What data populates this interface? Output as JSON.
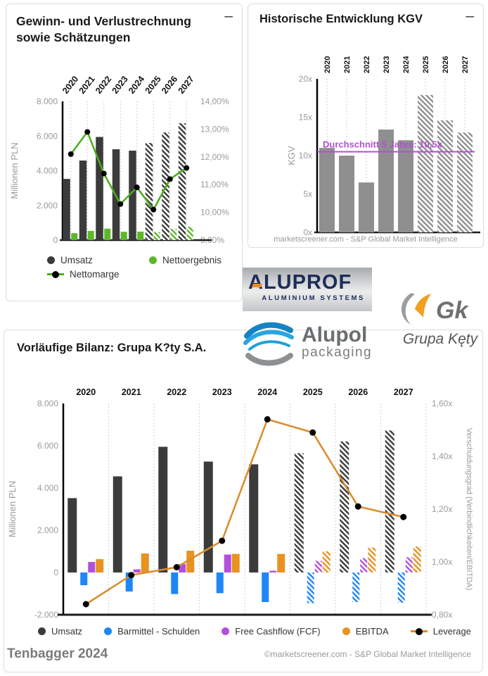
{
  "ui": {
    "collapse_icon": "–",
    "kgv_source": "marketscreener.com - S&P Global Market Intelligence"
  },
  "footer": {
    "left": "Tenbagger 2024",
    "right": "©marketscreener.com - S&P Global Market Intelligence"
  },
  "logos": {
    "aluprof": {
      "name": "ALUPROF",
      "subtitle": "ALUMINIUM SYSTEMS"
    },
    "alupol": {
      "name": "Alupol",
      "subtitle": "packaging"
    },
    "grupakety": {
      "abbr": "Gk",
      "name": "Grupa Kęty"
    }
  },
  "chart_data": [
    {
      "id": "income",
      "type": "bar",
      "title": "Gewinn- und Verlustrechnung sowie Schätzungen",
      "categories": [
        "2020",
        "2021",
        "2022",
        "2023",
        "2024",
        "2025",
        "2026",
        "2027"
      ],
      "estimated_categories": [
        "2025",
        "2026",
        "2027"
      ],
      "ylabel_left": "Millionen PLN",
      "ylim_left": [
        0,
        8000
      ],
      "yticks_left": [
        {
          "v": 8000,
          "label": "8.000"
        },
        {
          "v": 6000,
          "label": "6.000"
        },
        {
          "v": 4000,
          "label": "4.000"
        },
        {
          "v": 2000,
          "label": "2.000"
        },
        {
          "v": 0,
          "label": "0"
        }
      ],
      "ylim_right": [
        9,
        14
      ],
      "yticks_right": [
        {
          "v": 14,
          "label": "14,00%"
        },
        {
          "v": 13,
          "label": "13,00%"
        },
        {
          "v": 12,
          "label": "12,00%"
        },
        {
          "v": 11,
          "label": "11,00%"
        },
        {
          "v": 10,
          "label": "10,00%"
        },
        {
          "v": 9,
          "label": "9,00%"
        }
      ],
      "series": [
        {
          "name": "Umsatz",
          "kind": "bar",
          "axis": "left",
          "color": "#3b3b3b",
          "values": [
            3530,
            4590,
            5950,
            5240,
            5160,
            5600,
            6210,
            6740
          ]
        },
        {
          "name": "Nettoergebnis",
          "kind": "bar",
          "axis": "left",
          "color": "#5cb82a",
          "values": [
            400,
            530,
            660,
            480,
            490,
            460,
            640,
            770
          ]
        },
        {
          "name": "Nettomarge",
          "kind": "line",
          "axis": "right",
          "color": "#4aae1c",
          "marker_color": "#000000",
          "values": [
            12.1,
            12.9,
            11.4,
            10.3,
            10.9,
            10.1,
            11.2,
            11.6
          ]
        }
      ],
      "legend": [
        {
          "label": "Umsatz",
          "marker": "dot",
          "color": "#3b3b3b"
        },
        {
          "label": "Nettoergebnis",
          "marker": "dot",
          "color": "#5cb82a"
        },
        {
          "label": "Nettomarge",
          "marker": "line-dot",
          "color": "#4aae1c"
        }
      ]
    },
    {
      "id": "kgv",
      "type": "bar",
      "title": "Historische Entwicklung KGV",
      "categories": [
        "2020",
        "2021",
        "2022",
        "2023",
        "2024",
        "2025",
        "2026",
        "2027"
      ],
      "estimated_categories": [
        "2025",
        "2026",
        "2027"
      ],
      "ylabel_left": "KGV",
      "ylim_left": [
        0,
        20
      ],
      "yticks_left": [
        {
          "v": 20,
          "label": "20x"
        },
        {
          "v": 15,
          "label": "15x"
        },
        {
          "v": 10,
          "label": "10x"
        },
        {
          "v": 5,
          "label": "5x"
        },
        {
          "v": 0,
          "label": "0x"
        }
      ],
      "series": [
        {
          "name": "KGV",
          "kind": "bar",
          "axis": "left",
          "color": "#8f8f8f",
          "values": [
            11.0,
            10.0,
            6.5,
            13.4,
            12.0,
            17.9,
            14.6,
            13.0
          ]
        }
      ],
      "average_line": {
        "label": "Durchschnitt 5 Jahre: 10,5x",
        "value": 10.5,
        "color": "#b44fd6"
      },
      "legend": []
    },
    {
      "id": "balance",
      "type": "bar",
      "title": "Vorläufige Bilanz: Grupa K?ty S.A.",
      "categories": [
        "2020",
        "2021",
        "2022",
        "2023",
        "2024",
        "2025",
        "2026",
        "2027"
      ],
      "estimated_categories": [
        "2025",
        "2026",
        "2027"
      ],
      "ylabel_left": "Millionen PLN",
      "ylabel_right": "Verschuldungsgrad (Verbindlichkeiten/EBITDA)",
      "ylim_left": [
        -2000,
        8000
      ],
      "yticks_left": [
        {
          "v": 8000,
          "label": "8.000"
        },
        {
          "v": 6000,
          "label": "6.000"
        },
        {
          "v": 4000,
          "label": "4.000"
        },
        {
          "v": 2000,
          "label": "2.000"
        },
        {
          "v": 0,
          "label": "0"
        },
        {
          "v": -2000,
          "label": "-2.000"
        }
      ],
      "ylim_right": [
        0.8,
        1.6
      ],
      "yticks_right": [
        {
          "v": 1.6,
          "label": "1,60x"
        },
        {
          "v": 1.4,
          "label": "1,40x"
        },
        {
          "v": 1.2,
          "label": "1,20x"
        },
        {
          "v": 1.0,
          "label": "1,00x"
        },
        {
          "v": 0.8,
          "label": "0,80x"
        }
      ],
      "series": [
        {
          "name": "Umsatz",
          "kind": "bar",
          "axis": "left",
          "color": "#3b3b3b",
          "values": [
            3520,
            4550,
            5950,
            5250,
            5120,
            5650,
            6200,
            6720
          ]
        },
        {
          "name": "Barmittel - Schulden",
          "kind": "bar",
          "axis": "left",
          "color": "#1f86f5",
          "values": [
            -600,
            -900,
            -1020,
            -980,
            -1400,
            -1450,
            -1400,
            -1430
          ]
        },
        {
          "name": "Free Cashflow (FCF)",
          "kind": "bar",
          "axis": "left",
          "color": "#b44fdd",
          "values": [
            500,
            150,
            400,
            850,
            80,
            550,
            680,
            720
          ]
        },
        {
          "name": "EBITDA",
          "kind": "bar",
          "axis": "left",
          "color": "#e8921f",
          "values": [
            630,
            900,
            1030,
            880,
            880,
            1000,
            1180,
            1230
          ]
        },
        {
          "name": "Leverage",
          "kind": "line",
          "axis": "right",
          "color": "#d98c2b",
          "marker_color": "#000000",
          "values": [
            0.84,
            0.95,
            0.98,
            1.08,
            1.54,
            1.49,
            1.21,
            1.17
          ]
        }
      ],
      "legend": [
        {
          "label": "Umsatz",
          "marker": "dot",
          "color": "#3b3b3b"
        },
        {
          "label": "Barmittel - Schulden",
          "marker": "dot",
          "color": "#1f86f5"
        },
        {
          "label": "Free Cashflow (FCF)",
          "marker": "dot",
          "color": "#b44fdd"
        },
        {
          "label": "EBITDA",
          "marker": "dot",
          "color": "#e8921f"
        },
        {
          "label": "Leverage",
          "marker": "line-dot",
          "color": "#d98c2b"
        }
      ]
    }
  ]
}
